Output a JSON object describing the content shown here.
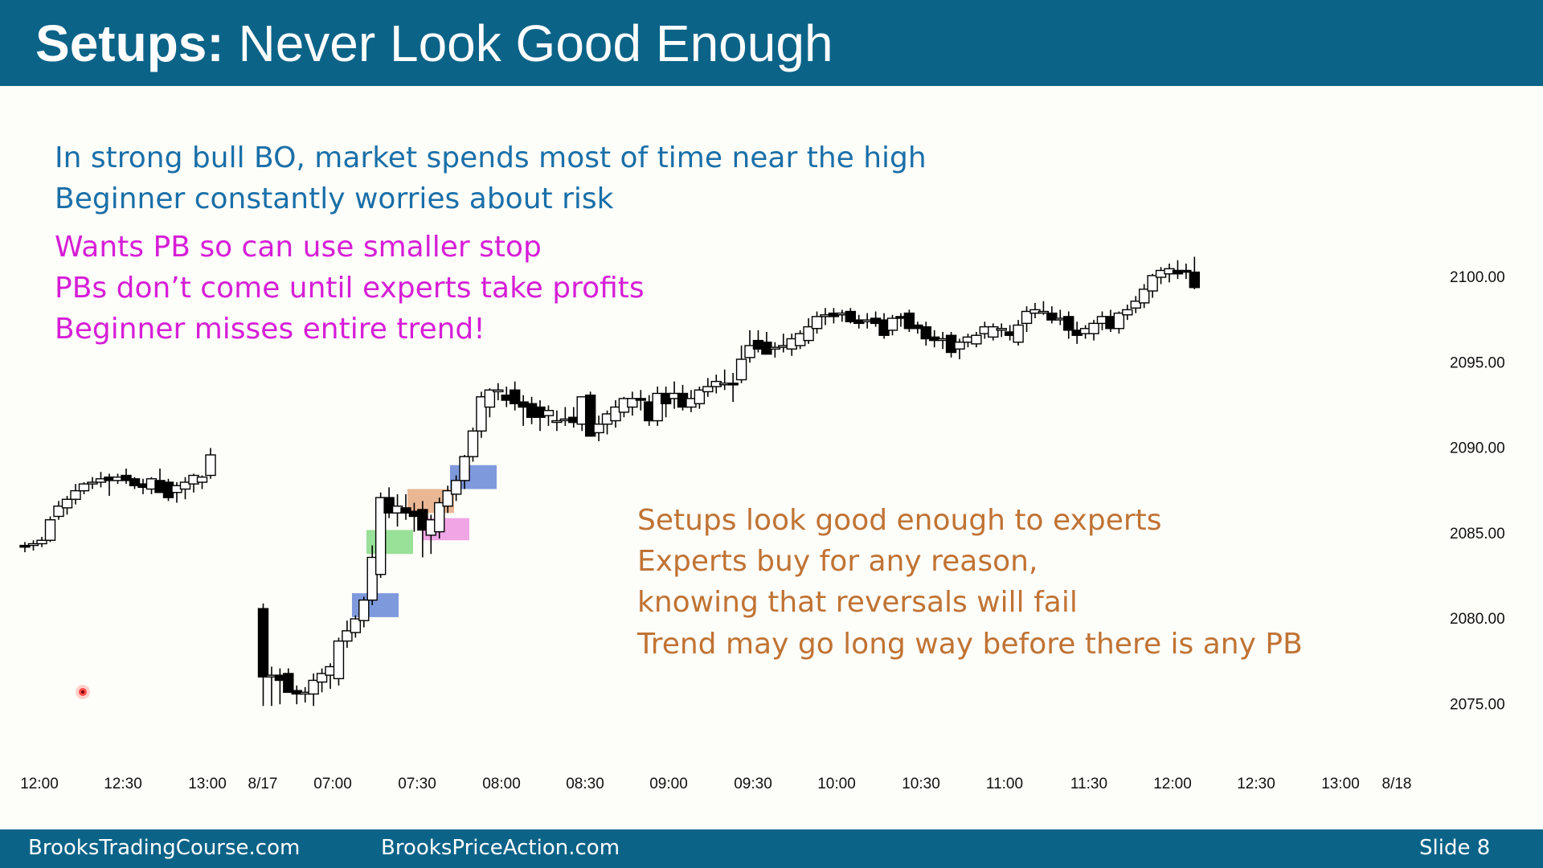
{
  "slide": {
    "title_bold": "Setups:",
    "title_rest": " Never Look Good Enough",
    "footer_left": "BrooksTradingCourse.com",
    "footer_mid": "BrooksPriceAction.com",
    "footer_right": "Slide  8"
  },
  "notes": {
    "blue": [
      "In strong bull BO, market spends most of time near the high",
      "Beginner constantly worries about risk"
    ],
    "magenta": [
      "Wants PB so can use smaller stop",
      "PBs don’t come until experts take profits",
      "Beginner misses entire trend!"
    ],
    "orange": [
      "Setups look good enough to experts",
      "Experts buy for any reason,",
      "knowing that reversals will fail",
      "Trend may go long way before there is any PB"
    ]
  },
  "colors": {
    "header": "#0c6388",
    "blue_text": "#1a6fa8",
    "magenta_text": "#d61ed6",
    "orange_text": "#c07334",
    "bull_candle": "#ffffff",
    "bear_candle": "#000000",
    "highlight_blue": "#5f7fd6",
    "highlight_green": "#7fd87f",
    "highlight_orange": "#e3a57a",
    "highlight_pink": "#ee8fe0"
  },
  "chart_data": {
    "type": "candlestick",
    "yticks": [
      "2100.00",
      "2095.00",
      "2090.00",
      "2085.00",
      "2080.00",
      "2075.00"
    ],
    "xticks": [
      "12:00",
      "12:30",
      "13:00",
      "8/17",
      "07:00",
      "07:30",
      "08:00",
      "08:30",
      "09:00",
      "09:30",
      "10:00",
      "10:30",
      "11:00",
      "11:30",
      "12:00",
      "12:30",
      "13:00",
      "8/18"
    ],
    "ylim": [
      2073,
      2102
    ],
    "candles_day1": [
      [
        2084.3,
        2084.5,
        2083.9,
        2084.2
      ],
      [
        2084.3,
        2084.6,
        2084.0,
        2084.4
      ],
      [
        2084.4,
        2084.8,
        2084.2,
        2084.6
      ],
      [
        2084.6,
        2086.0,
        2084.5,
        2085.8
      ],
      [
        2086.0,
        2086.9,
        2085.8,
        2086.6
      ],
      [
        2086.5,
        2087.2,
        2086.1,
        2087.0
      ],
      [
        2087.0,
        2087.9,
        2086.7,
        2087.5
      ],
      [
        2087.5,
        2088.0,
        2087.3,
        2087.9
      ],
      [
        2087.9,
        2088.3,
        2087.6,
        2088.0
      ],
      [
        2088.0,
        2088.6,
        2087.7,
        2088.2
      ],
      [
        2088.3,
        2088.5,
        2087.2,
        2088.1
      ],
      [
        2088.1,
        2088.5,
        2087.9,
        2088.3
      ],
      [
        2088.4,
        2088.8,
        2087.9,
        2088.1
      ],
      [
        2088.2,
        2088.3,
        2087.6,
        2087.8
      ],
      [
        2087.9,
        2088.2,
        2087.3,
        2087.7
      ],
      [
        2087.6,
        2088.3,
        2087.3,
        2088.2
      ],
      [
        2088.1,
        2088.8,
        2087.5,
        2087.4
      ],
      [
        2088.0,
        2088.2,
        2086.9,
        2087.1
      ],
      [
        2087.4,
        2088.0,
        2086.8,
        2087.8
      ],
      [
        2087.6,
        2088.3,
        2087.0,
        2088.0
      ],
      [
        2087.9,
        2088.5,
        2087.4,
        2088.4
      ],
      [
        2088.0,
        2088.4,
        2087.6,
        2088.3
      ],
      [
        2088.4,
        2090.0,
        2088.2,
        2089.6
      ]
    ],
    "candles_day2": [
      [
        2080.6,
        2080.9,
        2074.9,
        2076.6
      ],
      [
        2076.6,
        2077.2,
        2074.9,
        2076.7
      ],
      [
        2076.7,
        2077.1,
        2075.0,
        2076.4
      ],
      [
        2076.8,
        2077.1,
        2075.7,
        2075.7
      ],
      [
        2075.8,
        2076.1,
        2075.0,
        2075.6
      ],
      [
        2075.6,
        2076.0,
        2075.1,
        2075.7
      ],
      [
        2075.6,
        2076.8,
        2074.9,
        2076.4
      ],
      [
        2076.3,
        2077.1,
        2075.7,
        2076.8
      ],
      [
        2076.7,
        2077.4,
        2075.9,
        2077.2
      ],
      [
        2076.5,
        2078.9,
        2076.1,
        2078.7
      ],
      [
        2078.7,
        2079.9,
        2078.3,
        2079.3
      ],
      [
        2079.2,
        2080.2,
        2078.9,
        2080.0
      ],
      [
        2079.9,
        2081.3,
        2079.5,
        2081.1
      ],
      [
        2081.1,
        2084.3,
        2080.8,
        2083.6
      ],
      [
        2082.6,
        2087.4,
        2082.4,
        2087.1
      ],
      [
        2087.1,
        2087.7,
        2085.9,
        2086.2
      ],
      [
        2086.2,
        2087.3,
        2085.4,
        2086.6
      ],
      [
        2086.5,
        2087.3,
        2085.8,
        2086.2
      ],
      [
        2086.3,
        2086.8,
        2085.1,
        2086.0
      ],
      [
        2086.4,
        2086.9,
        2083.6,
        2085.2
      ],
      [
        2084.9,
        2086.1,
        2083.8,
        2085.8
      ],
      [
        2085.1,
        2087.1,
        2084.7,
        2086.8
      ],
      [
        2086.6,
        2087.8,
        2086.2,
        2087.5
      ],
      [
        2087.3,
        2088.4,
        2086.9,
        2088.1
      ],
      [
        2088.1,
        2089.6,
        2087.6,
        2089.5
      ],
      [
        2089.5,
        2091.2,
        2089.2,
        2091.0
      ],
      [
        2091.0,
        2093.3,
        2090.6,
        2093.0
      ],
      [
        2092.4,
        2093.5,
        2091.8,
        2093.4
      ],
      [
        2093.3,
        2093.8,
        2092.8,
        2093.4
      ],
      [
        2093.1,
        2093.6,
        2092.4,
        2092.8
      ],
      [
        2093.4,
        2093.9,
        2092.2,
        2092.6
      ],
      [
        2092.7,
        2093.1,
        2091.3,
        2092.4
      ],
      [
        2092.6,
        2093.0,
        2091.4,
        2091.8
      ],
      [
        2092.4,
        2092.8,
        2091.0,
        2091.8
      ],
      [
        2091.9,
        2092.5,
        2091.3,
        2092.2
      ],
      [
        2091.6,
        2092.2,
        2091.0,
        2091.6
      ],
      [
        2091.7,
        2092.4,
        2091.3,
        2091.7
      ],
      [
        2091.8,
        2092.4,
        2091.2,
        2091.5
      ],
      [
        2091.4,
        2093.0,
        2091.0,
        2093.0
      ],
      [
        2093.1,
        2093.3,
        2090.8,
        2090.7
      ],
      [
        2090.9,
        2091.9,
        2090.4,
        2091.4
      ],
      [
        2091.4,
        2092.2,
        2090.8,
        2092.0
      ],
      [
        2091.6,
        2092.8,
        2091.2,
        2092.4
      ],
      [
        2092.1,
        2093.0,
        2091.8,
        2092.9
      ],
      [
        2092.4,
        2093.3,
        2091.9,
        2092.9
      ],
      [
        2092.9,
        2093.4,
        2092.2,
        2092.8
      ],
      [
        2092.7,
        2093.1,
        2091.3,
        2091.6
      ],
      [
        2091.6,
        2093.6,
        2091.3,
        2093.2
      ],
      [
        2093.2,
        2093.6,
        2091.8,
        2092.6
      ],
      [
        2092.9,
        2093.9,
        2092.3,
        2093.2
      ],
      [
        2093.2,
        2093.7,
        2092.2,
        2092.4
      ],
      [
        2092.4,
        2093.4,
        2092.1,
        2092.9
      ],
      [
        2092.6,
        2093.6,
        2092.3,
        2093.4
      ],
      [
        2093.3,
        2094.1,
        2093.0,
        2093.6
      ],
      [
        2093.6,
        2094.3,
        2093.2,
        2093.9
      ],
      [
        2093.8,
        2094.6,
        2093.4,
        2093.8
      ],
      [
        2093.8,
        2094.4,
        2092.7,
        2093.7
      ],
      [
        2094.0,
        2096.0,
        2093.8,
        2095.2
      ],
      [
        2095.3,
        2096.9,
        2095.0,
        2096.0
      ],
      [
        2096.3,
        2096.9,
        2095.6,
        2095.8
      ],
      [
        2096.2,
        2096.8,
        2095.5,
        2095.5
      ],
      [
        2095.8,
        2096.2,
        2095.3,
        2095.9
      ],
      [
        2095.9,
        2096.7,
        2095.6,
        2096.0
      ],
      [
        2095.8,
        2096.7,
        2095.4,
        2096.4
      ],
      [
        2096.0,
        2096.9,
        2095.8,
        2096.7
      ],
      [
        2096.3,
        2097.6,
        2096.1,
        2097.1
      ],
      [
        2097.0,
        2098.0,
        2096.7,
        2097.7
      ],
      [
        2097.7,
        2098.2,
        2097.2,
        2097.8
      ],
      [
        2097.9,
        2098.2,
        2097.3,
        2097.7
      ],
      [
        2097.8,
        2098.1,
        2097.4,
        2097.9
      ],
      [
        2098.0,
        2098.2,
        2097.3,
        2097.4
      ],
      [
        2097.5,
        2097.8,
        2097.0,
        2097.3
      ],
      [
        2097.4,
        2097.9,
        2097.0,
        2097.5
      ],
      [
        2097.6,
        2098.0,
        2097.1,
        2097.3
      ],
      [
        2097.5,
        2097.9,
        2096.4,
        2096.6
      ],
      [
        2096.9,
        2097.8,
        2096.6,
        2097.6
      ],
      [
        2097.7,
        2097.9,
        2097.1,
        2097.6
      ],
      [
        2097.9,
        2098.1,
        2096.8,
        2097.0
      ],
      [
        2097.2,
        2097.4,
        2096.7,
        2097.0
      ],
      [
        2097.1,
        2097.4,
        2096.0,
        2096.4
      ],
      [
        2096.5,
        2096.9,
        2095.9,
        2096.3
      ],
      [
        2096.4,
        2096.8,
        2095.8,
        2096.4
      ],
      [
        2096.6,
        2096.8,
        2095.3,
        2095.6
      ],
      [
        2095.8,
        2096.4,
        2095.2,
        2096.2
      ],
      [
        2096.2,
        2096.7,
        2095.9,
        2096.5
      ],
      [
        2096.1,
        2096.8,
        2095.9,
        2096.6
      ],
      [
        2096.7,
        2097.4,
        2096.4,
        2097.1
      ],
      [
        2096.5,
        2097.3,
        2096.3,
        2097.1
      ],
      [
        2096.9,
        2097.3,
        2096.5,
        2097.0
      ],
      [
        2096.8,
        2097.2,
        2096.3,
        2096.6
      ],
      [
        2096.2,
        2097.5,
        2096.0,
        2097.2
      ],
      [
        2097.3,
        2098.3,
        2096.8,
        2098.0
      ],
      [
        2097.9,
        2098.5,
        2097.6,
        2098.1
      ],
      [
        2098.0,
        2098.6,
        2097.8,
        2098.0
      ],
      [
        2097.9,
        2098.3,
        2097.3,
        2097.5
      ],
      [
        2097.6,
        2098.1,
        2097.2,
        2097.6
      ],
      [
        2097.7,
        2098.0,
        2096.4,
        2096.9
      ],
      [
        2096.9,
        2097.4,
        2096.1,
        2096.6
      ],
      [
        2096.7,
        2097.2,
        2096.4,
        2097.0
      ],
      [
        2096.7,
        2097.5,
        2096.3,
        2097.3
      ],
      [
        2097.3,
        2098.0,
        2096.9,
        2097.7
      ],
      [
        2097.7,
        2098.1,
        2096.8,
        2097.0
      ],
      [
        2097.0,
        2098.0,
        2096.7,
        2097.9
      ],
      [
        2097.8,
        2098.4,
        2097.5,
        2098.1
      ],
      [
        2098.2,
        2098.9,
        2097.9,
        2098.6
      ],
      [
        2098.5,
        2099.6,
        2098.2,
        2099.3
      ],
      [
        2099.2,
        2100.2,
        2098.8,
        2100.1
      ],
      [
        2100.0,
        2100.6,
        2099.6,
        2100.4
      ],
      [
        2100.2,
        2100.8,
        2099.7,
        2100.5
      ],
      [
        2100.4,
        2101.0,
        2099.9,
        2100.2
      ],
      [
        2100.4,
        2100.8,
        2099.9,
        2100.3
      ],
      [
        2100.3,
        2101.2,
        2099.3,
        2099.4
      ]
    ],
    "highlights": [
      {
        "color": "blue",
        "low": 2080.1,
        "high": 2081.5
      },
      {
        "color": "green",
        "low": 2083.8,
        "high": 2085.2
      },
      {
        "color": "orange",
        "low": 2086.2,
        "high": 2087.6
      },
      {
        "color": "pink",
        "low": 2084.6,
        "high": 2085.9
      },
      {
        "color": "blue",
        "low": 2087.6,
        "high": 2089.0
      }
    ]
  }
}
